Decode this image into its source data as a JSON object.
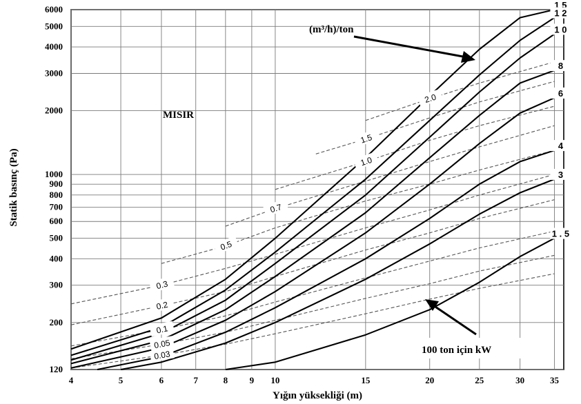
{
  "chart_data": {
    "type": "line",
    "title": "",
    "xlabel": "Yığın yüksekliği (m)",
    "ylabel": "Statik basınç (Pa)",
    "x_scale": "log",
    "y_scale": "log",
    "xlim": [
      4,
      36.5
    ],
    "ylim": [
      120,
      6000
    ],
    "x_ticks": [
      4,
      5,
      6,
      7,
      8,
      9,
      10,
      15,
      20,
      25,
      30,
      35
    ],
    "y_ticks": [
      120,
      200,
      300,
      400,
      500,
      600,
      700,
      800,
      900,
      1000,
      2000,
      3000,
      4000,
      5000,
      6000
    ],
    "grid": true,
    "annotations": {
      "crop": "MISIR",
      "airflow_unit": "(m³/h)/ton",
      "power_unit": "100 ton için kW"
    },
    "series": [
      {
        "name": "1 5",
        "x": [
          4,
          6,
          8,
          10,
          15,
          20,
          25,
          30,
          35
        ],
        "y": [
          150,
          210,
          320,
          500,
          1200,
          2350,
          3900,
          5500,
          6000
        ]
      },
      {
        "name": "1 2",
        "x": [
          4,
          6,
          8,
          10,
          15,
          20,
          25,
          30,
          35
        ],
        "y": [
          140,
          190,
          285,
          430,
          950,
          1800,
          2950,
          4300,
          5500
        ]
      },
      {
        "name": "1 0",
        "x": [
          4,
          6,
          8,
          10,
          15,
          20,
          25,
          30,
          35
        ],
        "y": [
          133,
          178,
          255,
          380,
          800,
          1500,
          2450,
          3550,
          4600
        ]
      },
      {
        "name": "8",
        "x": [
          4,
          6,
          8,
          10,
          15,
          20,
          25,
          30,
          35
        ],
        "y": [
          128,
          165,
          230,
          330,
          660,
          1200,
          1900,
          2700,
          3100
        ]
      },
      {
        "name": "6",
        "x": [
          4,
          6,
          8,
          10,
          15,
          20,
          25,
          30,
          35
        ],
        "y": [
          122,
          152,
          205,
          280,
          530,
          900,
          1400,
          1950,
          2300
        ]
      },
      {
        "name": "4",
        "x": [
          4.5,
          6,
          8,
          10,
          15,
          20,
          25,
          30,
          35
        ],
        "y": [
          120,
          138,
          180,
          235,
          400,
          620,
          900,
          1150,
          1300
        ]
      },
      {
        "name": "3",
        "x": [
          5,
          6,
          8,
          10,
          15,
          20,
          25,
          30,
          35
        ],
        "y": [
          120,
          130,
          160,
          200,
          320,
          470,
          650,
          820,
          950
        ]
      },
      {
        "name": "1 . 5",
        "x": [
          8,
          10,
          15,
          20,
          25,
          30,
          35
        ],
        "y": [
          120,
          130,
          175,
          230,
          310,
          410,
          500
        ]
      }
    ],
    "power_lines": [
      {
        "label": "2.0",
        "x": [
          15,
          20,
          25,
          35
        ],
        "y": [
          1800,
          2280,
          2700,
          3400
        ]
      },
      {
        "label": "1.5",
        "x": [
          12,
          15,
          20,
          25,
          35
        ],
        "y": [
          1250,
          1470,
          1850,
          2200,
          2750
        ]
      },
      {
        "label": "1.0",
        "x": [
          10,
          15,
          20,
          25,
          35
        ],
        "y": [
          850,
          1150,
          1450,
          1700,
          2100
        ]
      },
      {
        "label": "0.7",
        "x": [
          8,
          10,
          15,
          20,
          25,
          35
        ],
        "y": [
          570,
          690,
          930,
          1150,
          1350,
          1700
        ]
      },
      {
        "label": "0.5",
        "x": [
          6,
          8,
          10,
          15,
          20,
          25,
          35
        ],
        "y": [
          380,
          460,
          560,
          750,
          900,
          1050,
          1300
        ]
      },
      {
        "label": "0.3",
        "x": [
          4,
          6,
          8,
          10,
          15,
          20,
          25,
          35
        ],
        "y": [
          245,
          300,
          360,
          420,
          560,
          680,
          800,
          1000
        ]
      },
      {
        "label": "0.2",
        "x": [
          4,
          6,
          8,
          10,
          15,
          20,
          25,
          35
        ],
        "y": [
          195,
          240,
          280,
          330,
          440,
          530,
          620,
          760
        ]
      },
      {
        "label": "0.1",
        "x": [
          4,
          6,
          8,
          10,
          15,
          20,
          25,
          35
        ],
        "y": [
          155,
          185,
          215,
          250,
          325,
          390,
          450,
          540
        ]
      },
      {
        "label": "0.05",
        "x": [
          4,
          6,
          8,
          10,
          15,
          20,
          25,
          35
        ],
        "y": [
          135,
          158,
          180,
          205,
          260,
          305,
          350,
          415
        ]
      },
      {
        "label": "0.03",
        "x": [
          4,
          6,
          8,
          10,
          15,
          20,
          25,
          35
        ],
        "y": [
          122,
          140,
          158,
          177,
          220,
          258,
          290,
          340
        ]
      }
    ]
  }
}
